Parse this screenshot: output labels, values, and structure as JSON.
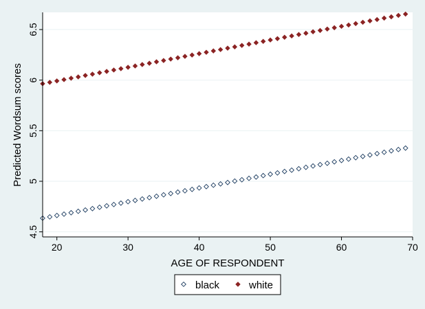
{
  "chart_data": {
    "type": "scatter",
    "title": "",
    "xlabel": "AGE OF RESPONDENT",
    "ylabel": "Predicted Wordsum scores",
    "xlim": [
      18,
      70
    ],
    "ylim": [
      4.45,
      6.67
    ],
    "xticks": [
      20,
      30,
      40,
      50,
      60,
      70
    ],
    "yticks": [
      4.5,
      5,
      5.5,
      6,
      6.5
    ],
    "xtick_labels": [
      "20",
      "30",
      "40",
      "50",
      "60",
      "70"
    ],
    "ytick_labels": [
      "4.5",
      "5",
      "5.5",
      "6",
      "6.5"
    ],
    "grid": "horizontal",
    "legend_position": "bottom",
    "x": [
      18,
      19,
      20,
      21,
      22,
      23,
      24,
      25,
      26,
      27,
      28,
      29,
      30,
      31,
      32,
      33,
      34,
      35,
      36,
      37,
      38,
      39,
      40,
      41,
      42,
      43,
      44,
      45,
      46,
      47,
      48,
      49,
      50,
      51,
      52,
      53,
      54,
      55,
      56,
      57,
      58,
      59,
      60,
      61,
      62,
      63,
      64,
      65,
      66,
      67,
      68,
      69
    ],
    "series": [
      {
        "name": "black",
        "marker": "hollow-diamond",
        "color": "#1a3a5e",
        "values": [
          4.635,
          4.648,
          4.662,
          4.675,
          4.689,
          4.703,
          4.716,
          4.73,
          4.743,
          4.757,
          4.77,
          4.784,
          4.798,
          4.811,
          4.825,
          4.838,
          4.852,
          4.866,
          4.879,
          4.893,
          4.906,
          4.92,
          4.934,
          4.947,
          4.961,
          4.974,
          4.988,
          5.002,
          5.015,
          5.029,
          5.042,
          5.056,
          5.07,
          5.083,
          5.097,
          5.11,
          5.124,
          5.138,
          5.151,
          5.165,
          5.178,
          5.192,
          5.206,
          5.219,
          5.233,
          5.246,
          5.26,
          5.274,
          5.287,
          5.301,
          5.314,
          5.328
        ]
      },
      {
        "name": "white",
        "marker": "filled-diamond",
        "color": "#8b2323",
        "values": [
          5.965,
          5.978,
          5.992,
          6.005,
          6.019,
          6.032,
          6.046,
          6.059,
          6.073,
          6.086,
          6.1,
          6.113,
          6.127,
          6.14,
          6.154,
          6.167,
          6.181,
          6.194,
          6.208,
          6.221,
          6.235,
          6.248,
          6.262,
          6.275,
          6.289,
          6.302,
          6.316,
          6.329,
          6.343,
          6.356,
          6.37,
          6.383,
          6.397,
          6.41,
          6.424,
          6.437,
          6.451,
          6.464,
          6.478,
          6.491,
          6.505,
          6.518,
          6.532,
          6.545,
          6.559,
          6.572,
          6.586,
          6.599,
          6.613,
          6.626,
          6.64,
          6.653
        ]
      }
    ]
  }
}
